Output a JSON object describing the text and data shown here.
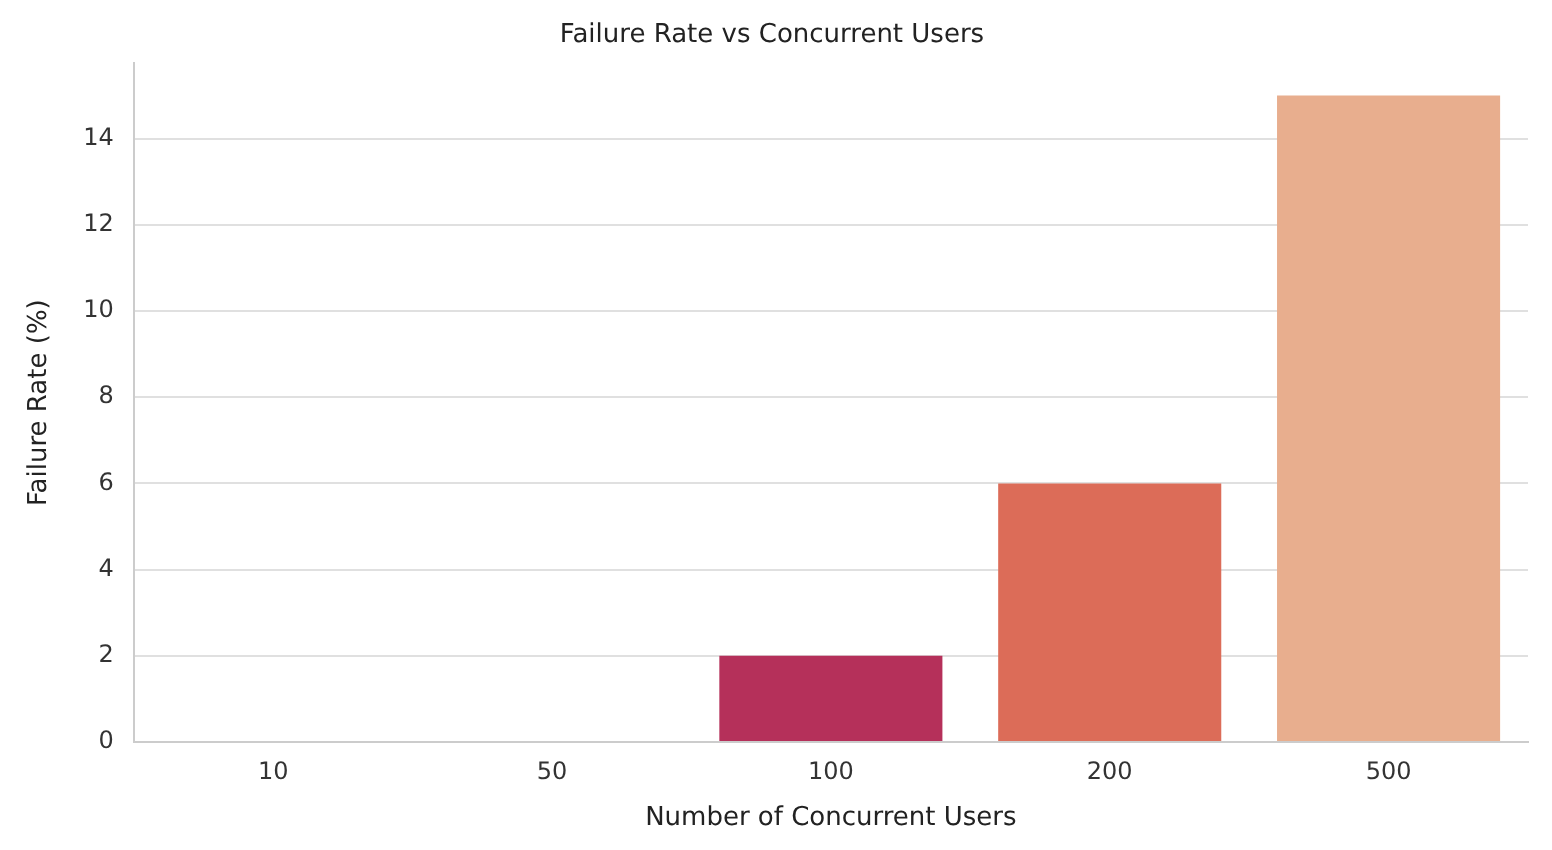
{
  "chart_data": {
    "type": "bar",
    "title": "Failure Rate vs Concurrent Users",
    "xlabel": "Number of Concurrent Users",
    "ylabel": "Failure Rate (%)",
    "categories": [
      "10",
      "50",
      "100",
      "200",
      "500"
    ],
    "values": [
      0,
      0,
      2,
      6,
      15
    ],
    "colors": [
      "#35193e",
      "#701f57",
      "#b5305a",
      "#dc6c58",
      "#e8ae8e"
    ],
    "ylim": [
      0,
      15.75
    ],
    "yticks": [
      0,
      2,
      4,
      6,
      8,
      10,
      12,
      14
    ],
    "grid": "y",
    "legend": false
  }
}
